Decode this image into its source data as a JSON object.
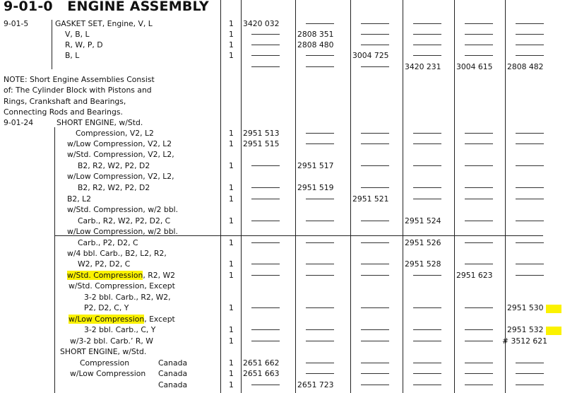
{
  "title": "9-01-0   ENGINE ASSEMBLY",
  "dash": "—",
  "highlight_color": "#fbf200",
  "rows": [
    {
      "code": "9-01-5",
      "desc": "GASKET SET, Engine, V, L",
      "qty": "1",
      "cells": [
        "3420 032",
        "—",
        "—",
        "—",
        "—",
        "—"
      ]
    },
    {
      "desc": "V, B, L",
      "qty": "1",
      "cells": [
        "—",
        "2808 351",
        "—",
        "—",
        "—",
        "—"
      ]
    },
    {
      "desc": "R, W, P, D",
      "qty": "1",
      "cells": [
        "—",
        "2808 480",
        "—",
        "—",
        "—",
        "—"
      ]
    },
    {
      "desc": "B, L",
      "qty": "1",
      "cells": [
        "—",
        "—",
        "3004 725",
        "—",
        "—",
        "—"
      ]
    },
    {
      "desc": "",
      "cells": [
        "—",
        "—",
        "—",
        "3420 231",
        "3004 615",
        "2808 482"
      ]
    },
    {
      "desc": "NOTE: Short Engine Assemblies Consist"
    },
    {
      "desc": "of: The Cylinder Block with Pistons and"
    },
    {
      "desc": "Rings, Crankshaft and Bearings,"
    },
    {
      "desc": "Connecting Rods and Bearings."
    },
    {
      "code": "9-01-24",
      "desc": "SHORT ENGINE, w/Std."
    },
    {
      "desc": "Compression, V2, L2",
      "qty": "1",
      "cells": [
        "2951 513",
        "—",
        "—",
        "—",
        "—",
        "—"
      ]
    },
    {
      "desc": "w/Low Compression, V2, L2",
      "qty": "1",
      "cells": [
        "2951 515",
        "—",
        "—",
        "—",
        "—",
        "—"
      ]
    },
    {
      "desc": "w/Std. Compression, V2, L2,"
    },
    {
      "desc": "B2, R2, W2, P2, D2",
      "qty": "1",
      "cells": [
        "—",
        "2951 517",
        "—",
        "—",
        "—",
        "—"
      ]
    },
    {
      "desc": "w/Low Compression, V2, L2,"
    },
    {
      "desc": "B2, R2, W2, P2, D2",
      "qty": "1",
      "cells": [
        "—",
        "2951 519",
        "—",
        "—",
        "—",
        "—"
      ]
    },
    {
      "desc": "B2, L2",
      "qty": "1",
      "cells": [
        "—",
        "—",
        "2951 521",
        "—",
        "—",
        "—"
      ]
    },
    {
      "desc": "w/Std. Compression, w/2 bbl."
    },
    {
      "desc": "Carb., R2, W2, P2, D2, C",
      "qty": "1",
      "cells": [
        "—",
        "—",
        "—",
        "2951 524",
        "—",
        "—"
      ]
    },
    {
      "desc": "w/Low Compression, w/2 bbl."
    },
    {
      "desc": "Carb., P2, D2, C",
      "qty": "1",
      "cells": [
        "—",
        "—",
        "—",
        "2951 526",
        "—",
        "—"
      ]
    },
    {
      "desc": "w/4 bbl. Carb., B2, L2, R2,"
    },
    {
      "desc": "W2, P2, D2, C",
      "qty": "1",
      "cells": [
        "—",
        "—",
        "—",
        "2951 528",
        "—",
        "—"
      ]
    },
    {
      "hl": "w/Std. Compression",
      "desc": ", R2, W2",
      "qty": "1",
      "cells": [
        "—",
        "—",
        "—",
        "—",
        "2951 623",
        "—"
      ]
    },
    {
      "desc": "w/Std. Compression, Except"
    },
    {
      "desc": "3-2 bbl. Carb., R2, W2,"
    },
    {
      "desc": "P2, D2, C, Y",
      "qty": "1",
      "cells": [
        "—",
        "—",
        "—",
        "—",
        "—",
        "2951 530"
      ],
      "marked": true
    },
    {
      "hl": "w/Low Compression",
      "desc": ", Except"
    },
    {
      "desc": "3-2 bbl. Carb., C, Y",
      "qty": "1",
      "cells": [
        "—",
        "—",
        "—",
        "—",
        "—",
        "2951 532"
      ],
      "marked": true
    },
    {
      "desc": "w/3-2 bbl. Carb.’ R, W",
      "qty": "1",
      "cells": [
        "—",
        "—",
        "—",
        "—",
        "—",
        "# 3512 621"
      ]
    },
    {
      "desc": "SHORT ENGINE, w/Std."
    },
    {
      "desc": "Compression",
      "region": "Canada",
      "qty": "1",
      "cells": [
        "2651 662",
        "—",
        "—",
        "—",
        "—",
        "—"
      ]
    },
    {
      "desc": "w/Low Compression",
      "region": "Canada",
      "qty": "1",
      "cells": [
        "2651 663",
        "—",
        "—",
        "—",
        "—",
        "—"
      ]
    },
    {
      "desc": "",
      "region": "Canada",
      "qty": "1",
      "cells": [
        "—",
        "2651 723",
        "—",
        "—",
        "—",
        "—"
      ]
    }
  ]
}
